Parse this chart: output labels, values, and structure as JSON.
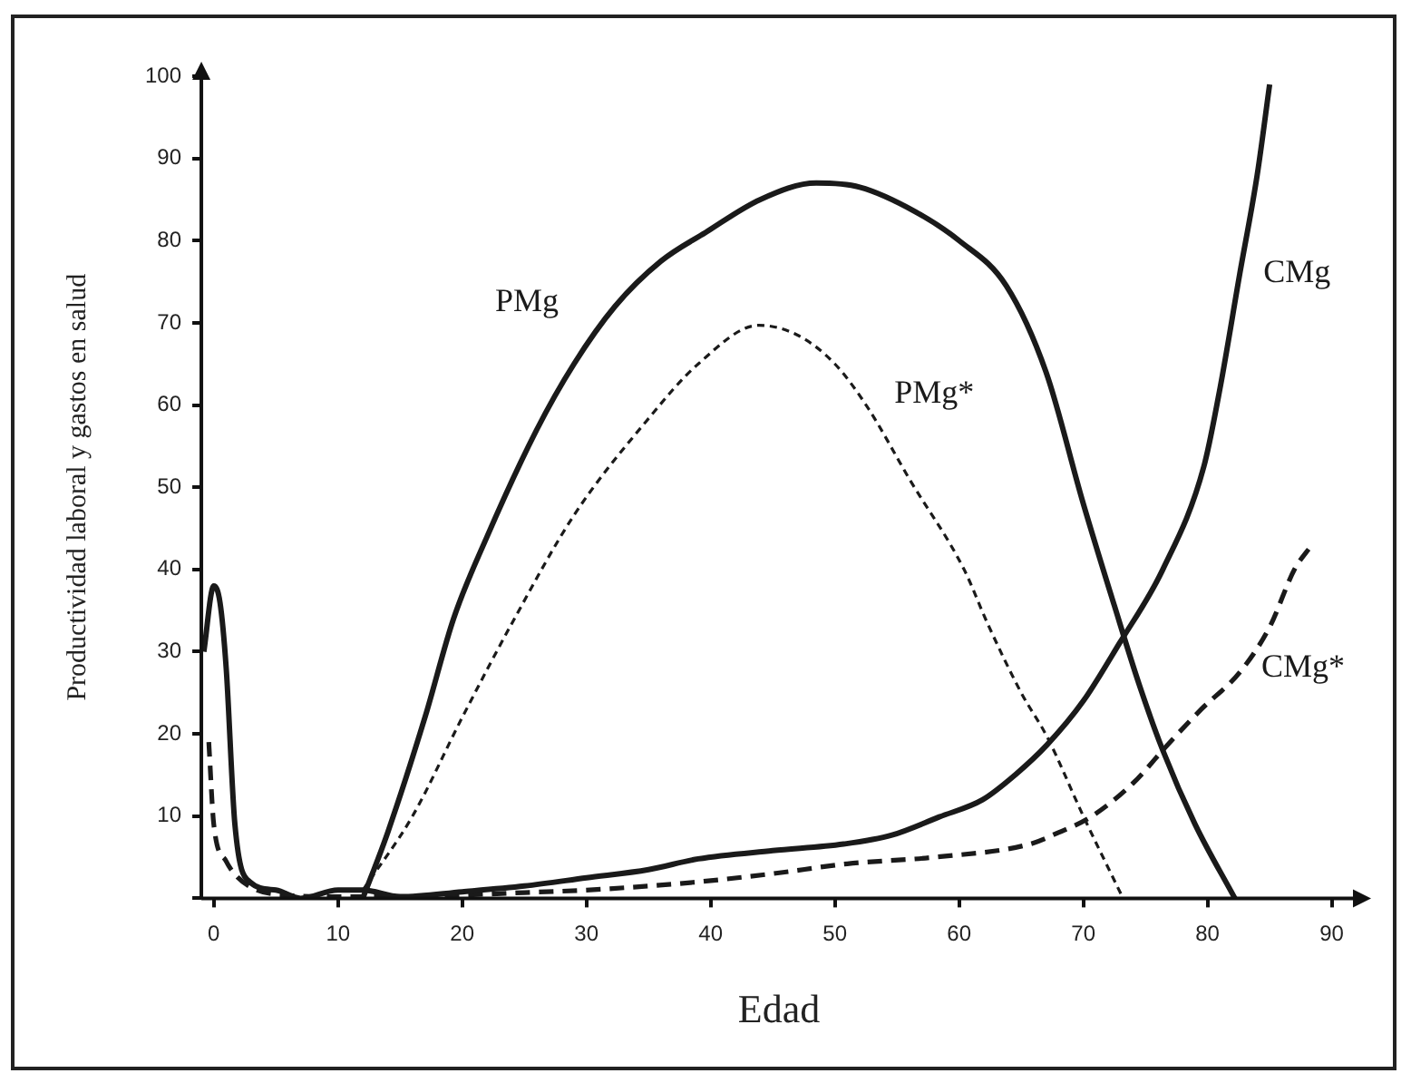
{
  "chart_data": {
    "type": "line",
    "xlabel": "Edad",
    "ylabel": "Productividad laboral y gastos en salud",
    "xlim": [
      -1,
      92
    ],
    "ylim": [
      0,
      100
    ],
    "xticks": [
      0,
      10,
      20,
      30,
      40,
      50,
      60,
      70,
      80,
      90
    ],
    "yticks": [
      {
        "value": 0,
        "label": null
      },
      10,
      20,
      30,
      40,
      50,
      60,
      70,
      80,
      90,
      100
    ],
    "grid": false,
    "legend": false,
    "marker": "none",
    "series": [
      {
        "name": "PMg",
        "color": "#1a1a1a",
        "line_style": "solid",
        "x": [
          12,
          14,
          17,
          19.3,
          22,
          26,
          29,
          32.3,
          36,
          39.6,
          44,
          48.5,
          52,
          56.5,
          60,
          63.8,
          67,
          70,
          72.5,
          74.5,
          76.4,
          79,
          82.2
        ],
        "values": [
          0,
          8,
          22,
          34,
          44,
          57,
          65,
          72,
          77.5,
          81,
          85,
          87,
          86.5,
          83.5,
          80,
          74.5,
          64,
          48,
          35.6,
          26,
          18,
          9,
          0
        ]
      },
      {
        "name": "PMg*",
        "color": "#1a1a1a",
        "line_style": "dotted",
        "x": [
          12,
          16,
          20,
          24.2,
          29,
          34.8,
          39,
          43.9,
          47,
          50,
          52.6,
          56,
          60.4,
          62.3,
          65,
          67.1,
          70,
          73.2
        ],
        "values": [
          1,
          10,
          22,
          34,
          46.6,
          58,
          65,
          69.7,
          68.5,
          65,
          59.8,
          51,
          40,
          33.4,
          25,
          19.6,
          10,
          0
        ]
      },
      {
        "name": "CMg",
        "color": "#1a1a1a",
        "line_style": "solid",
        "x": [
          -0.8,
          0,
          0.5,
          1,
          1.7,
          2.9,
          5,
          7,
          10,
          12,
          15,
          20,
          25,
          30,
          35,
          39,
          45,
          50.7,
          54.6,
          58.4,
          61.9,
          64.5,
          67.1,
          70,
          72.9,
          76.4,
          79.7,
          81,
          82.6,
          84,
          85
        ],
        "values": [
          30,
          38,
          36,
          28,
          9,
          2,
          1,
          0,
          1,
          1,
          0.2,
          0.8,
          1.5,
          2.5,
          3.5,
          4.8,
          5.8,
          6.6,
          7.7,
          9.9,
          12,
          15,
          18.7,
          24,
          31,
          40,
          52.5,
          62,
          76,
          88,
          99
        ]
      },
      {
        "name": "CMg*",
        "color": "#1a1a1a",
        "line_style": "dashed",
        "x": [
          -0.4,
          0,
          1,
          1.9,
          3.5,
          5.8,
          10,
          15,
          20,
          25,
          30,
          35,
          39,
          45,
          51,
          58,
          65.7,
          68,
          70.6,
          74,
          76.8,
          79.5,
          82.6,
          85,
          87,
          88.4
        ],
        "values": [
          19,
          9,
          4.5,
          2.6,
          1,
          0.4,
          0.2,
          0.2,
          0.4,
          0.7,
          1,
          1.5,
          2,
          3,
          4.2,
          5,
          6.6,
          8,
          9.9,
          14,
          18.7,
          23,
          27.5,
          33,
          40,
          43
        ]
      }
    ]
  }
}
